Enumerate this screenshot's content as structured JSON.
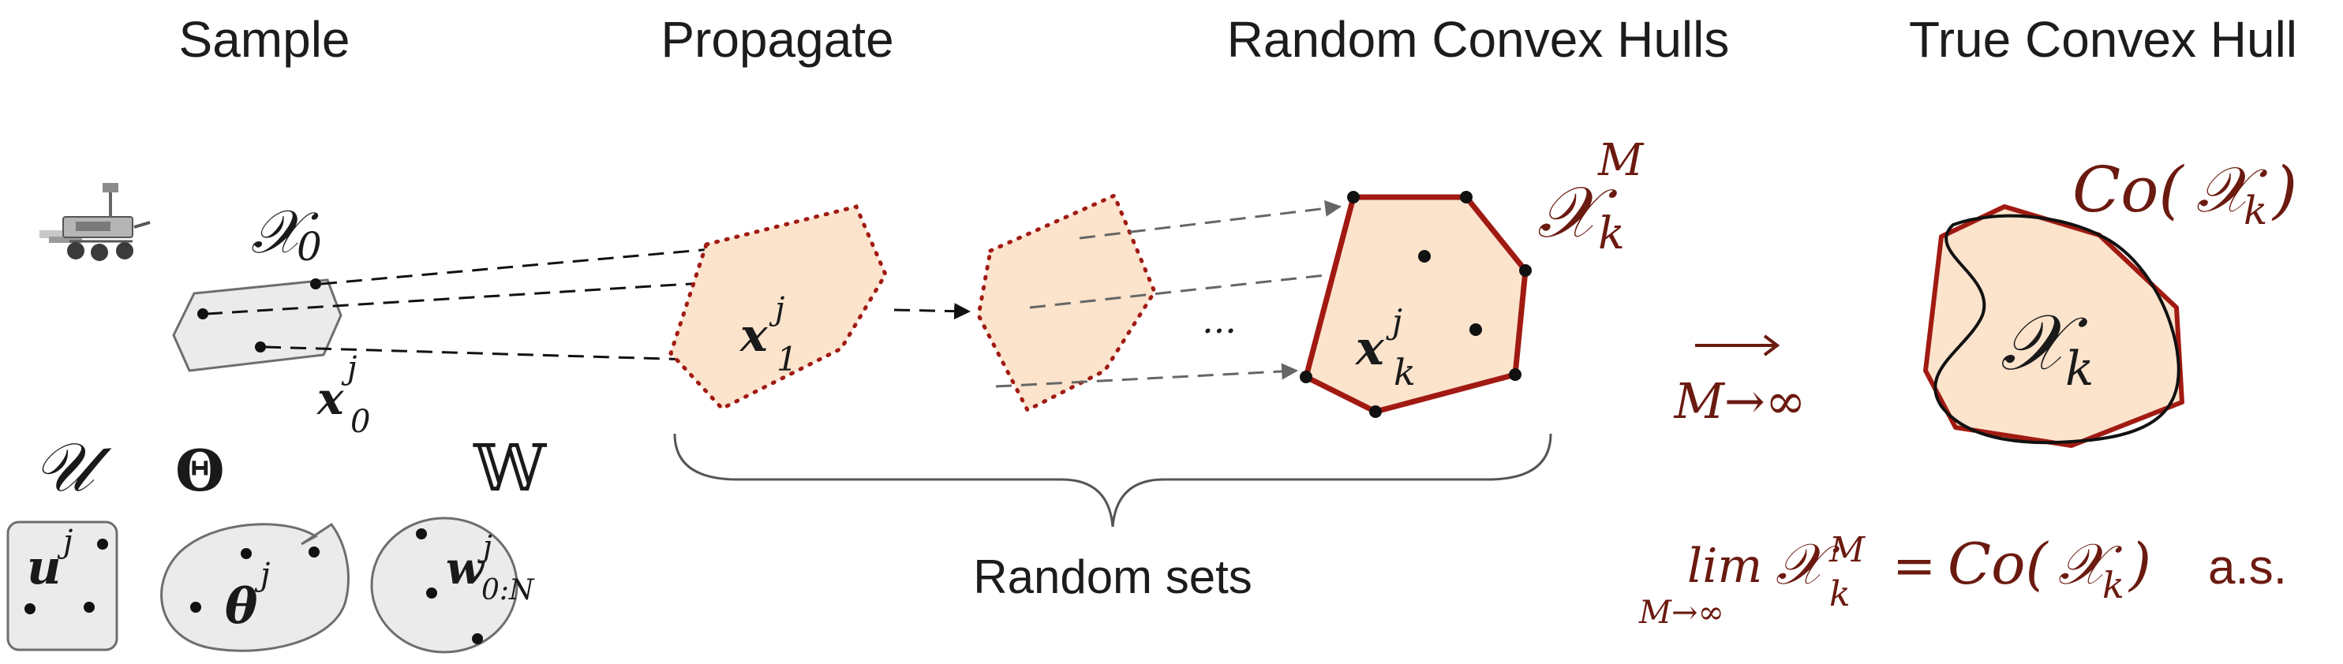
{
  "stages": {
    "sample": "Sample",
    "propagate": "Propagate",
    "random_hulls": "Random Convex Hulls",
    "true_hull": "True Convex Hull"
  },
  "brace_label": "Random sets",
  "math": {
    "X": "𝒳",
    "sub0": "0",
    "x": "x",
    "j": "j",
    "sub1": "1",
    "subk": "k",
    "supM": "M",
    "ellipsis": "...",
    "U": "𝒰",
    "Theta": "Θ",
    "W": "𝕎",
    "u": "u",
    "theta": "θ",
    "w": "w",
    "sub0N": "0:N",
    "arrow": "⟶",
    "M_to_inf": "M→∞",
    "Co": "Co(",
    "close": ")",
    "lim": "lim",
    "equals": "=",
    "as": "a.s."
  },
  "colors": {
    "hull_fill": "#fbe3cc",
    "hull_stroke": "#a11a12",
    "set_fill": "#ebebeb",
    "set_stroke": "#6e6e6e",
    "math_red": "#6b1a10"
  }
}
